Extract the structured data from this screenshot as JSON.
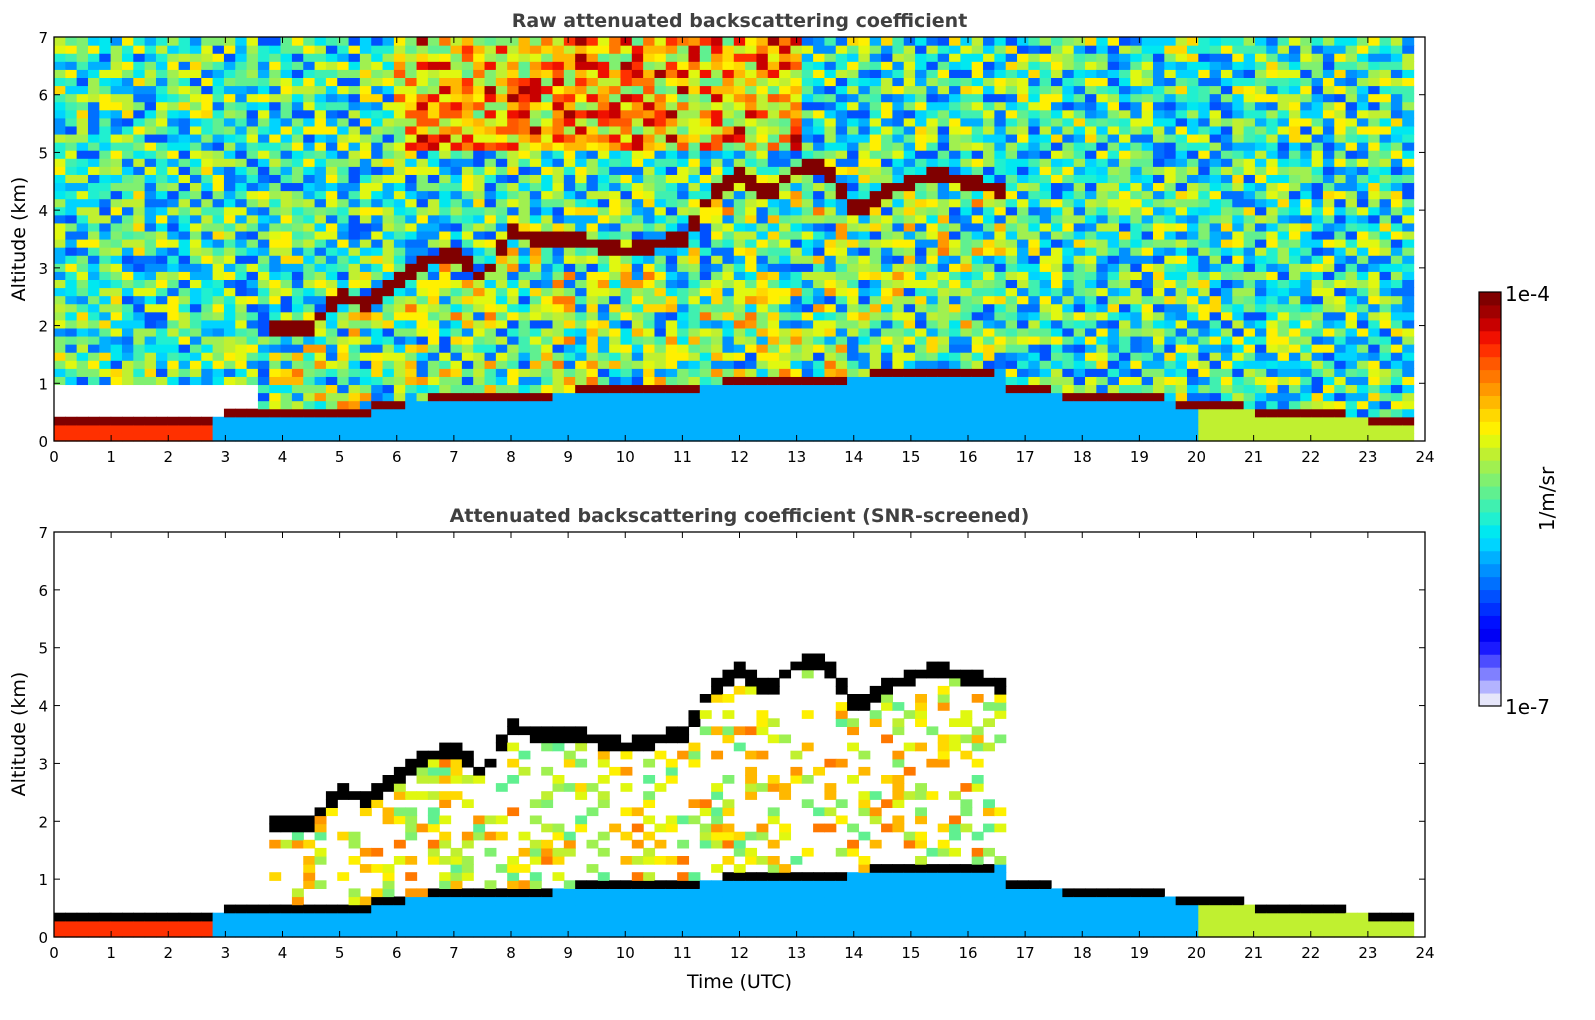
{
  "chart_data": [
    {
      "type": "heatmap",
      "title": "Raw attenuated backscattering coefficient",
      "xlabel": "",
      "ylabel": "Altitude (km)",
      "xlim": [
        0,
        24
      ],
      "ylim": [
        0,
        7
      ],
      "xticks": [
        "0",
        "1",
        "2",
        "3",
        "4",
        "5",
        "6",
        "7",
        "8",
        "9",
        "10",
        "11",
        "12",
        "13",
        "14",
        "15",
        "16",
        "17",
        "18",
        "19",
        "20",
        "21",
        "22",
        "23",
        "24"
      ],
      "yticks": [
        "0",
        "1",
        "2",
        "3",
        "4",
        "5",
        "6",
        "7"
      ],
      "features": {
        "boundary_layer_top_km": [
          [
            0,
            0.35
          ],
          [
            1,
            0.3
          ],
          [
            2,
            0.25
          ],
          [
            2.7,
            0.3
          ],
          [
            3,
            0.4
          ],
          [
            4,
            0.45
          ],
          [
            5,
            0.45
          ],
          [
            5.5,
            0.45
          ]
        ],
        "aerosol_layer_top_km": [
          [
            3.7,
            1.9
          ],
          [
            4.5,
            2.0
          ],
          [
            5,
            2.5
          ],
          [
            5.5,
            2.4
          ],
          [
            6,
            2.8
          ],
          [
            6.5,
            3.1
          ],
          [
            7,
            3.3
          ],
          [
            7.5,
            2.8
          ],
          [
            8,
            3.6
          ],
          [
            8.5,
            3.5
          ],
          [
            9,
            3.5
          ],
          [
            9.5,
            3.4
          ],
          [
            10,
            3.3
          ],
          [
            11,
            3.5
          ],
          [
            11.5,
            4.3
          ],
          [
            12,
            4.6
          ],
          [
            12.5,
            4.3
          ],
          [
            13,
            4.7
          ],
          [
            13.5,
            4.8
          ],
          [
            14,
            4.0
          ],
          [
            14.5,
            4.3
          ],
          [
            15,
            4.5
          ],
          [
            15.5,
            4.6
          ],
          [
            16,
            4.5
          ],
          [
            16.7,
            4.3
          ]
        ],
        "night_bl_top_km": [
          [
            16.7,
            0.85
          ],
          [
            18,
            0.75
          ],
          [
            19,
            0.7
          ],
          [
            20,
            0.6
          ],
          [
            21,
            0.5
          ],
          [
            22,
            0.4
          ],
          [
            23,
            0.35
          ],
          [
            23.8,
            0.3
          ]
        ]
      }
    },
    {
      "type": "heatmap",
      "title": "Attenuated backscattering coefficient (SNR-screened)",
      "xlabel": "Time (UTC)",
      "ylabel": "Altitude (km)",
      "xlim": [
        0,
        24
      ],
      "ylim": [
        0,
        7
      ],
      "xticks": [
        "0",
        "1",
        "2",
        "3",
        "4",
        "5",
        "6",
        "7",
        "8",
        "9",
        "10",
        "11",
        "12",
        "13",
        "14",
        "15",
        "16",
        "17",
        "18",
        "19",
        "20",
        "21",
        "22",
        "23",
        "24"
      ],
      "yticks": [
        "0",
        "1",
        "2",
        "3",
        "4",
        "5",
        "6",
        "7"
      ]
    }
  ],
  "colorbar": {
    "label": "1/m/sr",
    "max_label": "1e-4",
    "min_label": "1e-7",
    "scale": "log",
    "colors": [
      "#e6e6fa",
      "#b3b3ff",
      "#8080ff",
      "#4d4dff",
      "#1a1aff",
      "#0000f5",
      "#0010ff",
      "#0030ff",
      "#0050ff",
      "#0070ff",
      "#0090ff",
      "#00b0ff",
      "#00d4ff",
      "#00e8f0",
      "#20f0d0",
      "#40f0b0",
      "#60f090",
      "#80f070",
      "#a0f050",
      "#c0f030",
      "#e0f810",
      "#fff000",
      "#ffd800",
      "#ffb800",
      "#ff9800",
      "#ff7800",
      "#ff5800",
      "#ff3000",
      "#f01000",
      "#c80000",
      "#a00000",
      "#800000"
    ]
  }
}
